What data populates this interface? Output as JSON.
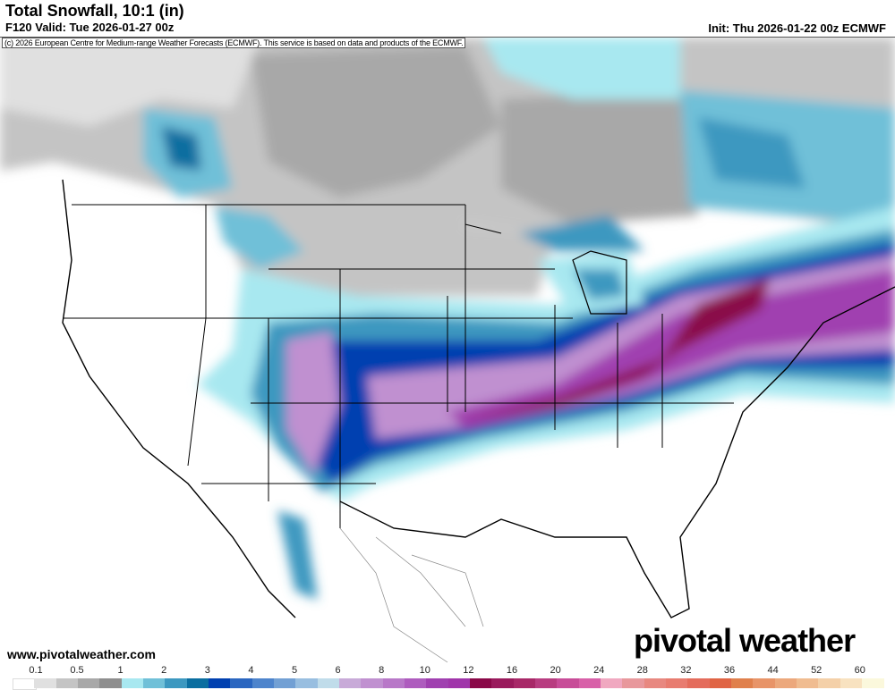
{
  "header": {
    "title": "Total Snowfall, 10:1 (in)",
    "valid": "F120 Valid: Tue 2026-01-27 00z",
    "init": "Init: Thu 2026-01-22 00z ECMWF",
    "credit": "(c) 2026 European Centre for Medium-range Weather Forecasts (ECMWF). This service is based on data and products of the ECMWF."
  },
  "footer": {
    "site": "www.pivotalweather.com",
    "logo": "pivotal weather"
  },
  "colorbar": {
    "labels": [
      "0.1",
      "0.5",
      "1",
      "2",
      "3",
      "4",
      "5",
      "6",
      "8",
      "10",
      "12",
      "16",
      "20",
      "24",
      "28",
      "32",
      "36",
      "44",
      "52",
      "60"
    ],
    "colors": [
      "#ffffff",
      "#e0e0e0",
      "#c4c4c4",
      "#a8a8a8",
      "#8e8e8e",
      "#a8e8f0",
      "#70c0d8",
      "#3c98c0",
      "#0a6ea0",
      "#0040b0",
      "#2a66c0",
      "#4d84cc",
      "#72a0d4",
      "#98bee0",
      "#c0dcea",
      "#c8aad8",
      "#c090d0",
      "#b878c8",
      "#ae5cbe",
      "#a040b0",
      "#a035aa",
      "#8a0848",
      "#9a1a5c",
      "#a82868",
      "#b83c80",
      "#c84c98",
      "#d860a8",
      "#f0a8c0",
      "#e8989c",
      "#e88880",
      "#e87c70",
      "#e46c5c",
      "#e06444",
      "#e0804c",
      "#e89468",
      "#eca87c",
      "#f0bc90",
      "#f4d0a8",
      "#f8e2c0",
      "#fbf8dc"
    ]
  }
}
